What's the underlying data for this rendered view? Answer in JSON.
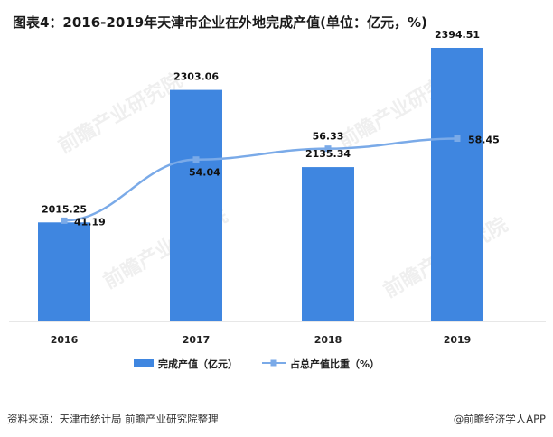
{
  "title": "图表4：2016-2019年天津市企业在外地完成产值(单位：亿元，%)",
  "source": "资料来源：天津市统计局 前瞻产业研究院整理",
  "brand": "@前瞻经济学人APP",
  "watermark": "前瞻产业研究院",
  "chart_data": {
    "type": "bar",
    "categories": [
      "2016",
      "2017",
      "2018",
      "2019"
    ],
    "series": [
      {
        "name": "完成产值（亿元）",
        "kind": "bar",
        "axis": "left",
        "values": [
          2015.25,
          2303.06,
          2135.34,
          2394.51
        ],
        "labels": [
          "2015.25",
          "2303.06",
          "2135.34",
          "2394.51"
        ],
        "color": "#3f86e0"
      },
      {
        "name": "占总产值比重（%）",
        "kind": "line",
        "axis": "right",
        "values": [
          41.19,
          54.04,
          56.33,
          58.45
        ],
        "labels": [
          "41.19",
          "54.04",
          "56.33",
          "58.45"
        ],
        "color": "#7aaae8"
      }
    ],
    "ylim_left": [
      1800,
      2420
    ],
    "ylim_right": [
      20,
      80
    ],
    "legend_position": "bottom-center",
    "grid": false
  }
}
